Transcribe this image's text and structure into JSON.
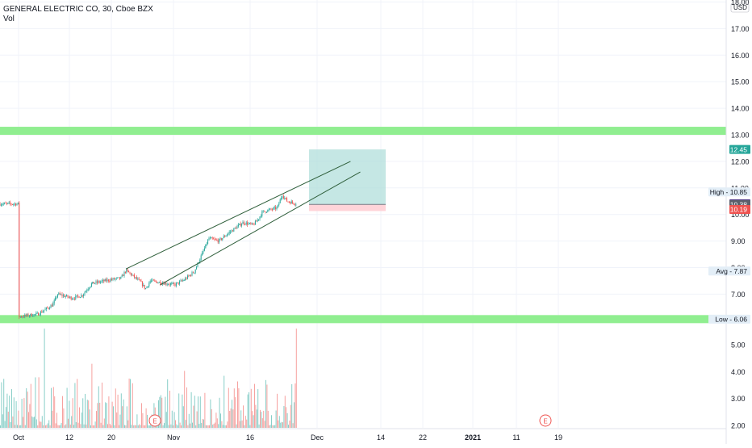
{
  "header": {
    "symbol_title": "GENERAL ELECTRIC CO, 30, Cboe BZX",
    "volume_label": "Vol"
  },
  "price_axis": {
    "currency": "USD",
    "ticks": [
      "18.00",
      "17.00",
      "16.00",
      "15.00",
      "14.00",
      "13.00",
      "12.00",
      "11.00",
      "10.00",
      "9.00",
      "8.00",
      "7.00"
    ],
    "tick_values": [
      18,
      17,
      16,
      15,
      14,
      13,
      12,
      11,
      10,
      9,
      8,
      7
    ]
  },
  "volume_axis": {
    "ticks": [
      "5.00",
      "4.00",
      "3.00",
      "2.00"
    ],
    "tick_values": [
      5,
      4,
      3,
      2
    ]
  },
  "time_axis": {
    "labels": [
      "Oct",
      "12",
      "20",
      "Nov",
      "16",
      "Dec",
      "14",
      "22",
      "2021",
      "11",
      "19"
    ],
    "bold": [
      false,
      false,
      false,
      false,
      false,
      false,
      false,
      false,
      true,
      false,
      false
    ]
  },
  "badges": [
    {
      "label": "",
      "value": "12.45",
      "bg": "#26a69a",
      "color": "#ffffff"
    },
    {
      "label": "High",
      "value": "10.85",
      "bg": "#e3eef7",
      "color": "#131722"
    },
    {
      "label": "",
      "value": "10.40",
      "bg": "#4a2a8f",
      "color": "#ffffff"
    },
    {
      "label": "",
      "value": "10.38",
      "bg": "#5d606b",
      "color": "#ffffff"
    },
    {
      "label": "",
      "value": "10.19",
      "bg": "#ef5350",
      "color": "#ffffff"
    },
    {
      "label": "Avg",
      "value": "7.87",
      "bg": "#e3eef7",
      "color": "#131722"
    },
    {
      "label": "Low",
      "value": "6.06",
      "bg": "#e3eef7",
      "color": "#131722"
    }
  ],
  "earnings_markers": [
    "E",
    "E"
  ],
  "colors": {
    "up": "#26a69a",
    "down": "#ef5350",
    "zone": "#90ee90",
    "target_fill": "#b2dfdb",
    "stop_fill": "#ffcdd2",
    "trendline": "#2e5e3a",
    "grid": "#f0f3fa"
  },
  "chart_data": {
    "type": "candlestick",
    "series_interval": "30",
    "price_path": [
      [
        "Oct 1",
        6.15
      ],
      [
        "Oct 5",
        6.25
      ],
      [
        "Oct 8",
        6.6
      ],
      [
        "Oct 9",
        7.0
      ],
      [
        "Oct 12",
        6.85
      ],
      [
        "Oct 14",
        6.95
      ],
      [
        "Oct 16",
        7.4
      ],
      [
        "Oct 20",
        7.55
      ],
      [
        "Oct 22",
        7.6
      ],
      [
        "Oct 23",
        7.9
      ],
      [
        "Oct 26",
        7.45
      ],
      [
        "Oct 27",
        7.2
      ],
      [
        "Oct 28",
        7.5
      ],
      [
        "Nov 2",
        7.35
      ],
      [
        "Nov 4",
        7.55
      ],
      [
        "Nov 6",
        7.85
      ],
      [
        "Nov 9",
        9.1
      ],
      [
        "Nov 11",
        9.0
      ],
      [
        "Nov 13",
        9.3
      ],
      [
        "Nov 16",
        9.7
      ],
      [
        "Nov 18",
        9.6
      ],
      [
        "Nov 19",
        9.8
      ],
      [
        "Nov 20",
        10.1
      ],
      [
        "Nov 23",
        10.25
      ],
      [
        "Nov 24",
        10.75
      ],
      [
        "Nov 25",
        10.5
      ],
      [
        "Nov 27",
        10.4
      ]
    ],
    "horizontal_zones": [
      {
        "value": 13.15,
        "color": "#90ee90"
      },
      {
        "value": 6.06,
        "color": "#90ee90"
      }
    ],
    "trendlines": [
      {
        "from": [
          "Oct 23",
          7.95
        ],
        "to": [
          "Dec 8",
          12.0
        ]
      },
      {
        "from": [
          "Oct 30",
          7.35
        ],
        "to": [
          "Dec 10",
          11.6
        ]
      }
    ],
    "position": {
      "entry": 10.38,
      "target": 12.45,
      "stop": 10.19
    },
    "volume_peaks": [
      5.6,
      5.6
    ],
    "high": 10.85,
    "low": 6.06,
    "avg": 7.87,
    "last": 10.4
  }
}
